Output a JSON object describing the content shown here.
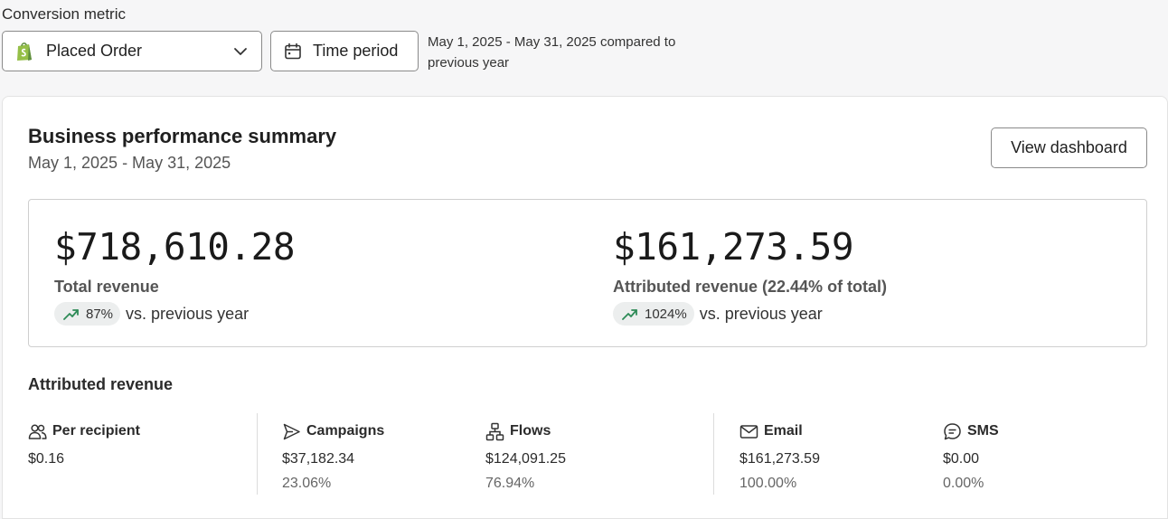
{
  "header": {
    "conversion_label": "Conversion metric",
    "metric_select": {
      "value": "Placed Order",
      "icon": "shopify-icon"
    },
    "time_period_label": "Time period",
    "date_note": "May 1, 2025 - May 31, 2025 compared to previous year"
  },
  "card": {
    "title": "Business performance summary",
    "subtitle": "May 1, 2025 - May 31, 2025",
    "view_dashboard_label": "View dashboard",
    "total_revenue": {
      "value": "$718,610.28",
      "label": "Total revenue",
      "change": "87%",
      "vs": "vs. previous year"
    },
    "attributed_revenue": {
      "value": "$161,273.59",
      "label": "Attributed revenue (22.44% of total)",
      "change": "1024%",
      "vs": "vs. previous year"
    },
    "attributed_section": {
      "title": "Attributed revenue",
      "metrics": [
        {
          "label": "Per recipient",
          "icon": "people-icon",
          "value": "$0.16"
        },
        {
          "label": "Campaigns",
          "icon": "send-icon",
          "value": "$37,182.34",
          "pct": "23.06%"
        },
        {
          "label": "Flows",
          "icon": "flow-icon",
          "value": "$124,091.25",
          "pct": "76.94%"
        },
        {
          "label": "Email",
          "icon": "mail-icon",
          "value": "$161,273.59",
          "pct": "100.00%"
        },
        {
          "label": "SMS",
          "icon": "sms-icon",
          "value": "$0.00",
          "pct": "0.00%"
        }
      ]
    }
  },
  "colors": {
    "trend_up": "#2e8b57",
    "pill_bg": "#eceeee",
    "shopify_green": "#95bf47"
  }
}
